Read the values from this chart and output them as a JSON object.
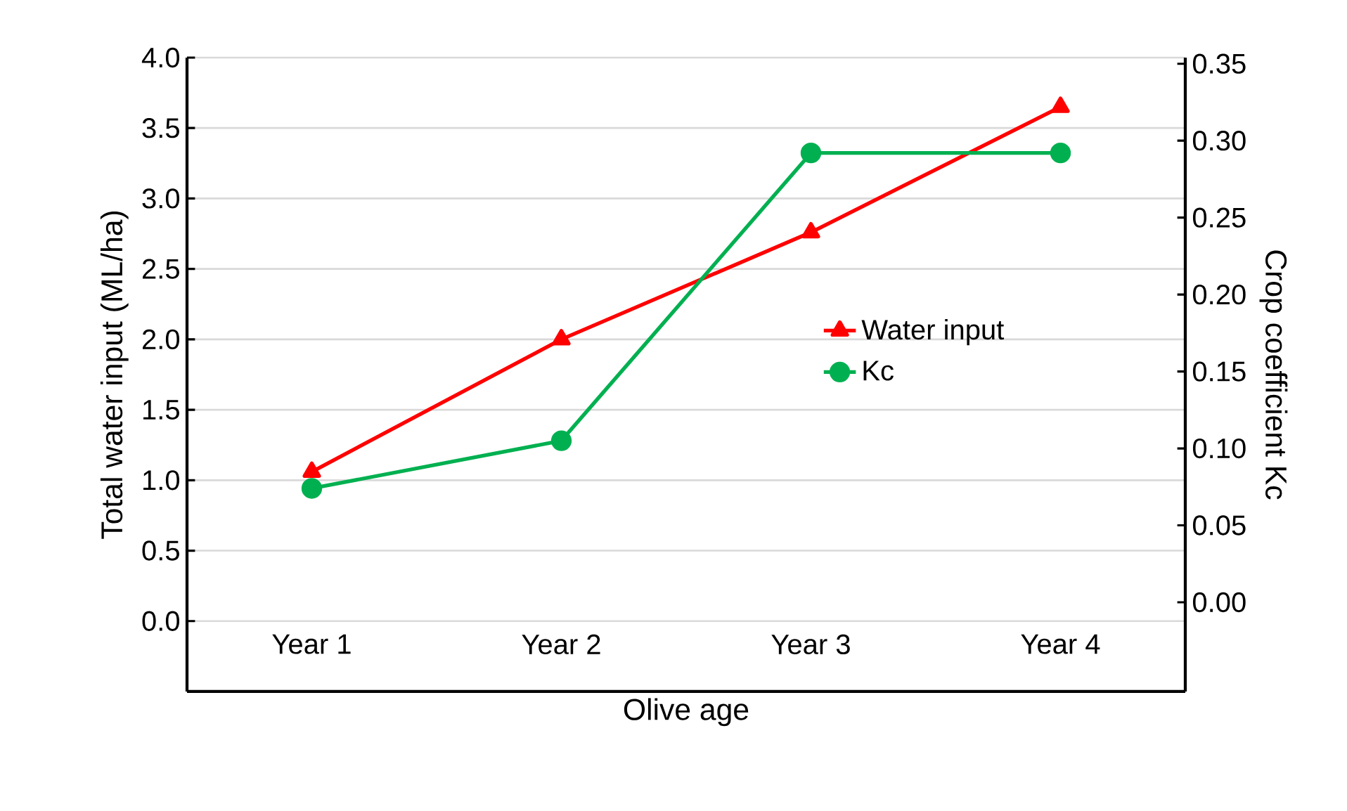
{
  "chart_data": {
    "type": "line",
    "xlabel": "Olive age",
    "ylabel": "Total water input (ML/ha)",
    "y2label": "Crop coefficient Kc",
    "categories": [
      "Year 1",
      "Year 2",
      "Year 3",
      "Year 4"
    ],
    "series": [
      {
        "name": "Water input",
        "color": "#ff0000",
        "marker": "triangle",
        "values": [
          1.06,
          2.0,
          2.76,
          3.65
        ]
      },
      {
        "name": "Kc",
        "color": "#00b050",
        "marker": "circle",
        "axis": "y2",
        "values": [
          0.074,
          0.105,
          0.292,
          0.292
        ]
      }
    ],
    "ylim": [
      -0.5,
      4.0
    ],
    "yticks": [
      {
        "value": 0,
        "label": "0.0"
      },
      0.5,
      {
        "value": 1,
        "label": "1.0"
      },
      1.5,
      {
        "value": 2,
        "label": "2.0"
      },
      2.5,
      {
        "value": 3,
        "label": "3.0"
      },
      3.5,
      {
        "value": 4,
        "label": "4.0"
      }
    ],
    "y2lim": [
      -0.058,
      0.354
    ],
    "y2ticks": [
      {
        "value": 0,
        "label": "0.00"
      },
      0.05,
      {
        "value": 0.1,
        "label": "0.10"
      },
      0.15,
      {
        "value": 0.2,
        "label": "0.20"
      },
      0.25,
      {
        "value": 0.3,
        "label": "0.30"
      },
      0.35
    ],
    "grid": "y",
    "legend": "right"
  }
}
